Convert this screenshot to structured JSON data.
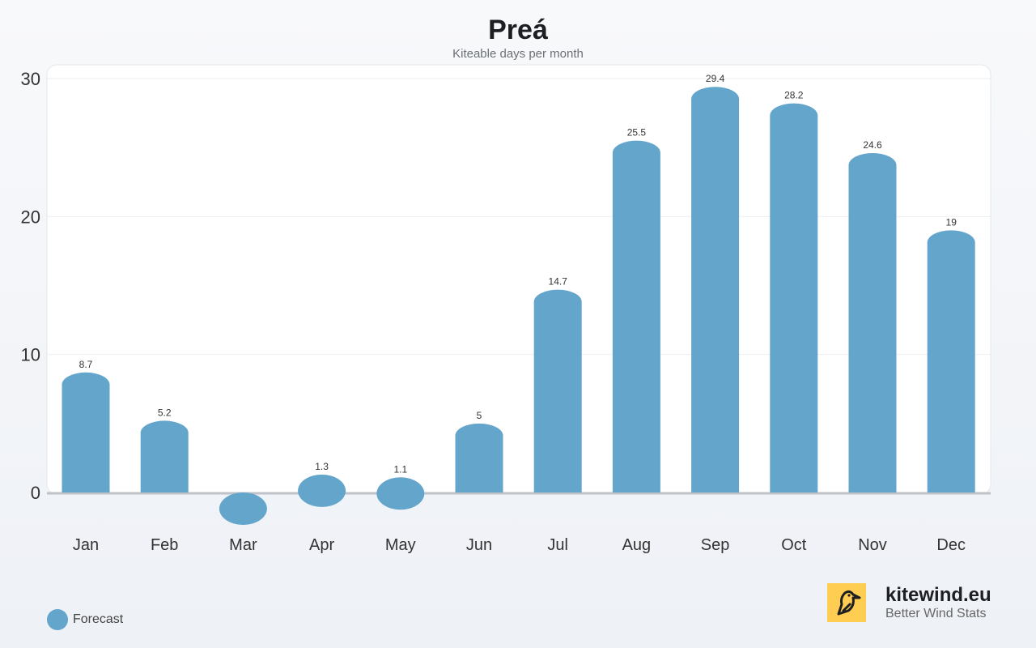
{
  "chart_data": {
    "type": "bar",
    "title": "Preá",
    "subtitle": "Kiteable days per month",
    "categories": [
      "Jan",
      "Feb",
      "Mar",
      "Apr",
      "May",
      "Jun",
      "Jul",
      "Aug",
      "Sep",
      "Oct",
      "Nov",
      "Dec"
    ],
    "series": [
      {
        "name": "Forecast",
        "values": [
          8.7,
          5.2,
          0,
          1.3,
          1.1,
          5,
          14.7,
          25.5,
          29.4,
          28.2,
          24.6,
          19
        ],
        "labels": [
          "8.7",
          "5.2",
          "",
          "1.3",
          "1.1",
          "5",
          "14.7",
          "25.5",
          "29.4",
          "28.2",
          "24.6",
          "19"
        ],
        "color": "#64a5cc"
      }
    ],
    "yticks": [
      "0",
      "10",
      "20",
      "30"
    ],
    "ylim": [
      0,
      30
    ],
    "grid": true,
    "legend": "bottom-left"
  },
  "brand": {
    "name": "kitewind.eu",
    "tagline": "Better Wind Stats",
    "logo_color": "#fecd52"
  }
}
